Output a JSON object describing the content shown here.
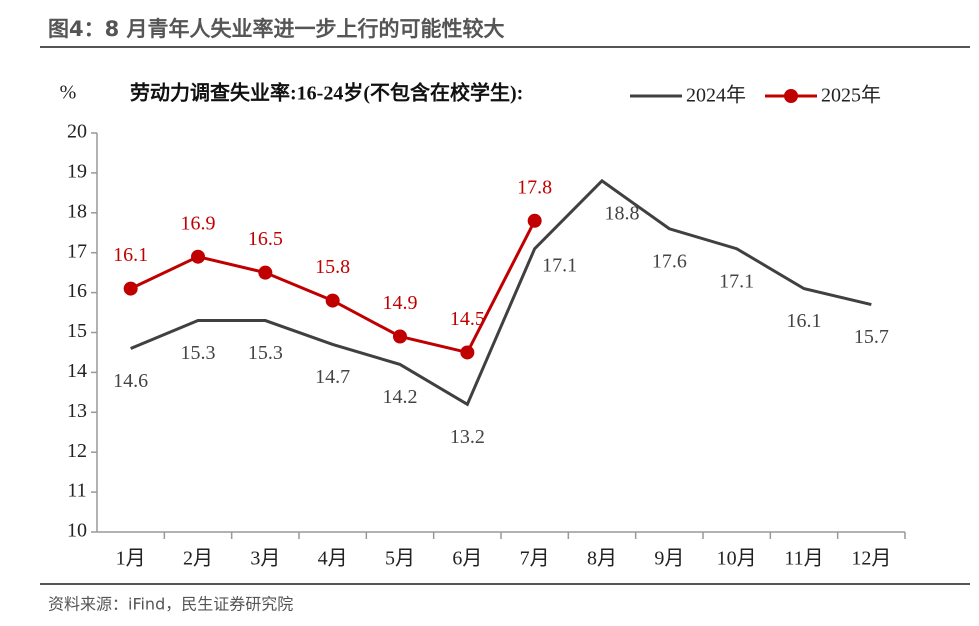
{
  "header": {
    "title": "图4：8 月青年人失业率进一步上行的可能性较大"
  },
  "source": "资料来源：iFind，民生证券研究院",
  "chart_data": {
    "type": "line",
    "title": "劳动力调查失业率:16-24岁(不包含在校学生):",
    "ylabel": "%",
    "categories": [
      "1月",
      "2月",
      "3月",
      "4月",
      "5月",
      "6月",
      "7月",
      "8月",
      "9月",
      "10月",
      "11月",
      "12月"
    ],
    "series": [
      {
        "name": "2024年",
        "color": "#404040",
        "marker": "none",
        "values": [
          14.6,
          15.3,
          15.3,
          14.7,
          14.2,
          13.2,
          17.1,
          18.8,
          17.6,
          17.1,
          16.1,
          15.7
        ]
      },
      {
        "name": "2025年",
        "color": "#c00000",
        "marker": "circle",
        "values": [
          16.1,
          16.9,
          16.5,
          15.8,
          14.9,
          14.5,
          17.8,
          null,
          null,
          null,
          null,
          null
        ]
      }
    ],
    "ylim": [
      10,
      20
    ],
    "yticks": [
      10,
      11,
      12,
      13,
      14,
      15,
      16,
      17,
      18,
      19,
      20
    ],
    "grid": false,
    "legend": "top"
  }
}
